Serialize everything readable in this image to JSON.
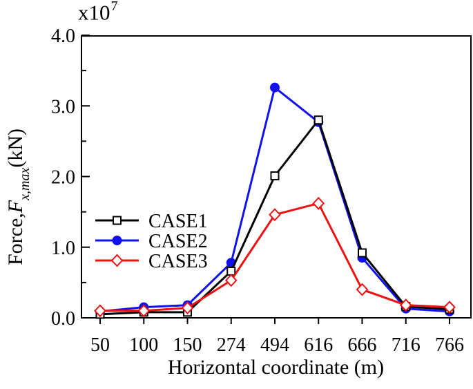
{
  "figure": {
    "background": "#ffffff",
    "text_color": "#000000"
  },
  "chart_data": {
    "type": "line",
    "title": "",
    "xlabel": "Horizontal coordinate (m)",
    "ylabel_parts": {
      "prefix": "Force,",
      "symbol": "F",
      "subscript": "x,max",
      "suffix": "(kN)"
    },
    "y_offset": {
      "base": "x10",
      "exp": "7"
    },
    "categories": [
      50,
      100,
      150,
      274,
      494,
      616,
      666,
      716,
      766
    ],
    "x_tick_labels": [
      "50",
      "100",
      "150",
      "274",
      "494",
      "616",
      "666",
      "716",
      "766"
    ],
    "ylim": [
      0.0,
      4.0
    ],
    "y_major_ticks": [
      0.0,
      1.0,
      2.0,
      3.0,
      4.0
    ],
    "y_tick_labels": [
      "0.0",
      "1.0",
      "2.0",
      "3.0",
      "4.0"
    ],
    "y_minor_step": 0.5,
    "values_unit": "x10^7 kN",
    "grid": false,
    "legend": {
      "position": "middle-left",
      "entries": [
        "CASE1",
        "CASE2",
        "CASE3"
      ]
    },
    "series": [
      {
        "name": "CASE1",
        "color": "#000000",
        "marker": "open-square",
        "marker_fill": "#ffffff",
        "zorder": 2,
        "values": [
          0.05,
          0.08,
          0.08,
          0.66,
          2.01,
          2.8,
          0.92,
          0.16,
          0.12
        ]
      },
      {
        "name": "CASE2",
        "color": "#1111ee",
        "marker": "filled-circle",
        "marker_fill": "#1111ee",
        "zorder": 1,
        "values": [
          0.09,
          0.15,
          0.18,
          0.78,
          3.26,
          2.77,
          0.85,
          0.13,
          0.09
        ]
      },
      {
        "name": "CASE3",
        "color": "#ee1111",
        "marker": "open-diamond",
        "marker_fill": "#ffffff",
        "zorder": 3,
        "values": [
          0.1,
          0.1,
          0.14,
          0.53,
          1.46,
          1.62,
          0.4,
          0.18,
          0.15
        ]
      }
    ]
  }
}
